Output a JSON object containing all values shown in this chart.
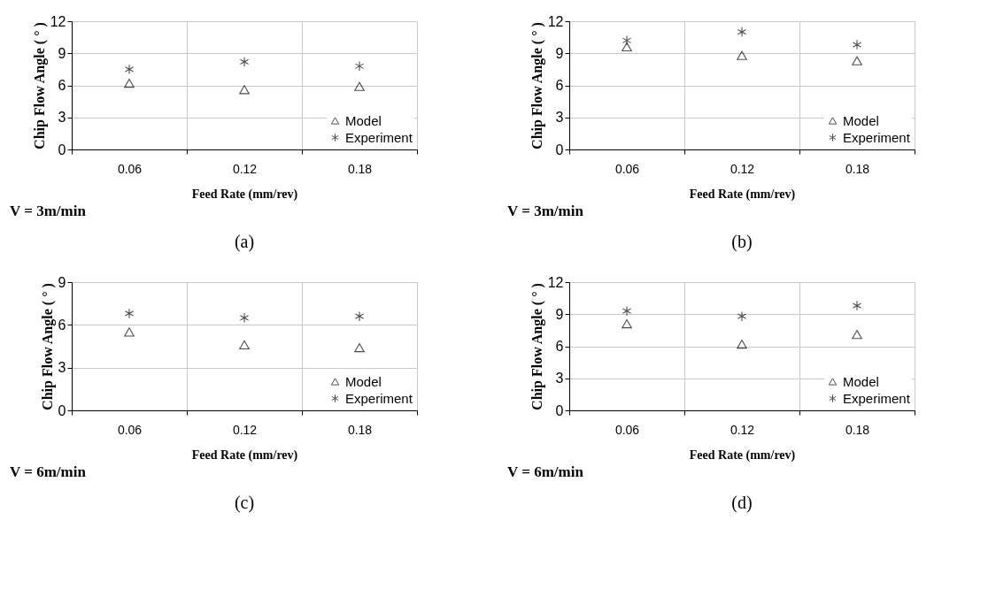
{
  "chart_data": [
    {
      "type": "scatter",
      "categories": [
        "0.06",
        "0.12",
        "0.18"
      ],
      "xlabel": "Feed Rate (mm/rev)",
      "ylabel": "Chip Flow Angle ( ° )",
      "ylim": [
        0,
        12
      ],
      "yticks": [
        0,
        3,
        6,
        9,
        12
      ],
      "grid": true,
      "legend": "bottom right",
      "series": [
        {
          "name": "Model",
          "color": "#000000",
          "marker": "triangle",
          "values": [
            6.2,
            5.6,
            5.9
          ]
        },
        {
          "name": "Experiment",
          "color": "#000000",
          "marker": "cross",
          "values": [
            7.5,
            8.2,
            7.8
          ]
        }
      ],
      "annotations": [
        "V = 3m/min",
        "(a)"
      ]
    },
    {
      "type": "scatter",
      "categories": [
        "0.06",
        "0.12",
        "0.18"
      ],
      "xlabel": "Feed Rate (mm/rev)",
      "ylabel": "Chip Flow Angle ( ° )",
      "ylim": [
        0,
        12
      ],
      "yticks": [
        0,
        3,
        6,
        9,
        12
      ],
      "grid": true,
      "legend": "bottom right",
      "series": [
        {
          "name": "Model",
          "color": "#000000",
          "marker": "triangle",
          "values": [
            9.6,
            8.8,
            8.3
          ]
        },
        {
          "name": "Experiment",
          "color": "#000000",
          "marker": "cross",
          "values": [
            10.2,
            11.0,
            9.8
          ]
        }
      ],
      "annotations": [
        "V = 3m/min",
        "(b)"
      ]
    },
    {
      "type": "scatter",
      "categories": [
        "0.06",
        "0.12",
        "0.18"
      ],
      "xlabel": "Feed Rate (mm/rev)",
      "ylabel": "Chip Flow Angle ( ° )",
      "ylim": [
        0,
        9
      ],
      "yticks": [
        0,
        3,
        6,
        9
      ],
      "grid": true,
      "legend": "bottom right",
      "series": [
        {
          "name": "Model",
          "color": "#000000",
          "marker": "triangle",
          "values": [
            5.5,
            4.6,
            4.4
          ]
        },
        {
          "name": "Experiment",
          "color": "#000000",
          "marker": "cross",
          "values": [
            6.8,
            6.5,
            6.6
          ]
        }
      ],
      "annotations": [
        "V = 6m/min",
        "(c)"
      ]
    },
    {
      "type": "scatter",
      "categories": [
        "0.06",
        "0.12",
        "0.18"
      ],
      "xlabel": "Feed Rate (mm/rev)",
      "ylabel": "Chip Flow Angle ( ° )",
      "ylim": [
        0,
        12
      ],
      "yticks": [
        0,
        3,
        6,
        9,
        12
      ],
      "grid": true,
      "legend": "bottom right",
      "series": [
        {
          "name": "Model",
          "color": "#000000",
          "marker": "triangle",
          "values": [
            8.1,
            6.2,
            7.1
          ]
        },
        {
          "name": "Experiment",
          "color": "#000000",
          "marker": "cross",
          "values": [
            9.3,
            8.8,
            9.8
          ]
        }
      ],
      "annotations": [
        "V = 6m/min",
        "(d)"
      ]
    }
  ]
}
